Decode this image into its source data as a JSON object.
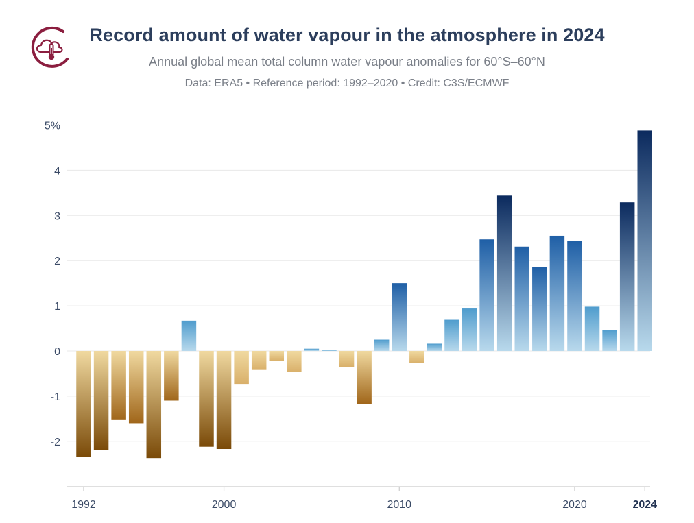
{
  "header": {
    "title": "Record amount of water vapour in the atmosphere in 2024",
    "subtitle": "Annual global mean total column water vapour anomalies for 60°S–60°N",
    "credit": "Data: ERA5 • Reference period: 1992–2020 • Credit: C3S/ECMWF",
    "logo_icon": "cloud-thermometer-icon"
  },
  "colors": {
    "title": "#2c3e5c",
    "logo": "#8b1e3f",
    "negative_light": "#f0d9a0",
    "negative_dark": "#7a4a08",
    "positive_light": "#b8d9ec",
    "positive_dark": "#0b2a5e",
    "grid": "#e8e8e8"
  },
  "chart_data": {
    "type": "bar",
    "x": [
      1992,
      1993,
      1994,
      1995,
      1996,
      1997,
      1998,
      1999,
      2000,
      2001,
      2002,
      2003,
      2004,
      2005,
      2006,
      2007,
      2008,
      2009,
      2010,
      2011,
      2012,
      2013,
      2014,
      2015,
      2016,
      2017,
      2018,
      2019,
      2020,
      2021,
      2022,
      2023,
      2024
    ],
    "values": [
      -2.35,
      -2.2,
      -1.53,
      -1.6,
      -2.37,
      -1.1,
      0.67,
      -2.12,
      -2.17,
      -0.73,
      -0.42,
      -0.22,
      -0.47,
      0.05,
      0.02,
      -0.35,
      -1.17,
      0.25,
      1.5,
      -0.27,
      0.16,
      0.69,
      0.94,
      2.47,
      3.44,
      2.31,
      1.86,
      2.55,
      2.44,
      0.98,
      0.47,
      3.29,
      4.88
    ],
    "ylim": [
      -3,
      5
    ],
    "yticks": [
      -2,
      -1,
      0,
      1,
      2,
      3,
      4,
      5
    ],
    "ytick_labels": [
      "-2",
      "-1",
      "0",
      "1",
      "2",
      "3",
      "4",
      "5%"
    ],
    "xticks": [
      1992,
      2000,
      2010,
      2020,
      2024
    ],
    "xtick_labels": [
      "1992",
      "2000",
      "2010",
      "2020",
      "2024"
    ],
    "highlight_tick": 2024,
    "grid": true,
    "legend": "none"
  }
}
